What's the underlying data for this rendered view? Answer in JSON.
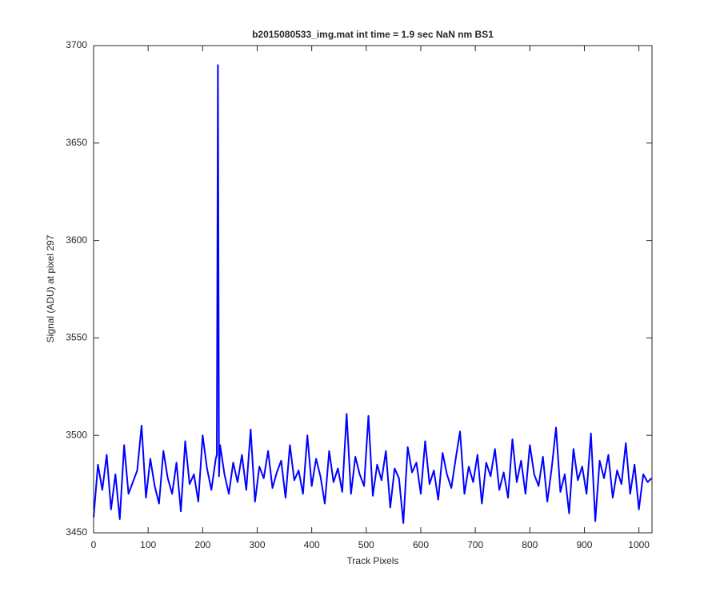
{
  "chart_data": {
    "type": "line",
    "title": "b2015080533_img.mat int time = 1.9 sec  NaN nm BS1",
    "x_label": "Track Pixels",
    "y_label": "Signal (ADU) at pixel 297",
    "color": "#0000ff",
    "xlim": [
      0,
      1024
    ],
    "xticks": [
      0,
      100,
      200,
      300,
      400,
      500,
      600,
      700,
      800,
      900,
      1000
    ],
    "ylim": [
      3450,
      3700
    ],
    "yticks": [
      3450,
      3500,
      3550,
      3600,
      3650,
      3700
    ],
    "x": [
      0,
      8,
      16,
      24,
      32,
      40,
      48,
      56,
      64,
      72,
      80,
      88,
      96,
      104,
      112,
      120,
      128,
      136,
      144,
      152,
      160,
      168,
      176,
      184,
      192,
      200,
      208,
      216,
      224,
      226,
      228,
      230,
      232,
      240,
      248,
      256,
      264,
      272,
      280,
      288,
      296,
      304,
      312,
      320,
      328,
      336,
      344,
      352,
      360,
      368,
      376,
      384,
      392,
      400,
      408,
      416,
      424,
      432,
      440,
      448,
      456,
      464,
      472,
      480,
      488,
      496,
      504,
      512,
      520,
      528,
      536,
      544,
      552,
      560,
      568,
      576,
      584,
      592,
      600,
      608,
      616,
      624,
      632,
      640,
      648,
      656,
      664,
      672,
      680,
      688,
      696,
      704,
      712,
      720,
      728,
      736,
      744,
      752,
      760,
      768,
      776,
      784,
      792,
      800,
      808,
      816,
      824,
      832,
      840,
      848,
      856,
      864,
      872,
      880,
      888,
      896,
      904,
      912,
      920,
      928,
      936,
      944,
      952,
      960,
      968,
      976,
      984,
      992,
      1000,
      1008,
      1016,
      1023
    ],
    "values": [
      3458,
      3485,
      3472,
      3490,
      3462,
      3480,
      3457,
      3495,
      3470,
      3476,
      3482,
      3505,
      3468,
      3488,
      3474,
      3465,
      3492,
      3478,
      3470,
      3486,
      3461,
      3497,
      3475,
      3480,
      3466,
      3500,
      3483,
      3472,
      3488,
      3490,
      3690,
      3479,
      3495,
      3480,
      3470,
      3486,
      3476,
      3490,
      3472,
      3503,
      3466,
      3484,
      3478,
      3492,
      3473,
      3481,
      3487,
      3468,
      3495,
      3477,
      3482,
      3470,
      3500,
      3474,
      3488,
      3479,
      3465,
      3492,
      3476,
      3483,
      3471,
      3511,
      3470,
      3489,
      3480,
      3474,
      3510,
      3469,
      3485,
      3477,
      3492,
      3463,
      3483,
      3478,
      3455,
      3494,
      3481,
      3486,
      3470,
      3497,
      3475,
      3482,
      3467,
      3491,
      3480,
      3473,
      3488,
      3502,
      3470,
      3484,
      3476,
      3490,
      3465,
      3486,
      3479,
      3493,
      3472,
      3481,
      3468,
      3498,
      3476,
      3487,
      3470,
      3495,
      3480,
      3474,
      3489,
      3466,
      3483,
      3504,
      3471,
      3480,
      3460,
      3493,
      3477,
      3484,
      3470,
      3501,
      3456,
      3487,
      3478,
      3490,
      3468,
      3482,
      3475,
      3496,
      3470,
      3485,
      3462,
      3480,
      3476,
      3478
    ]
  }
}
